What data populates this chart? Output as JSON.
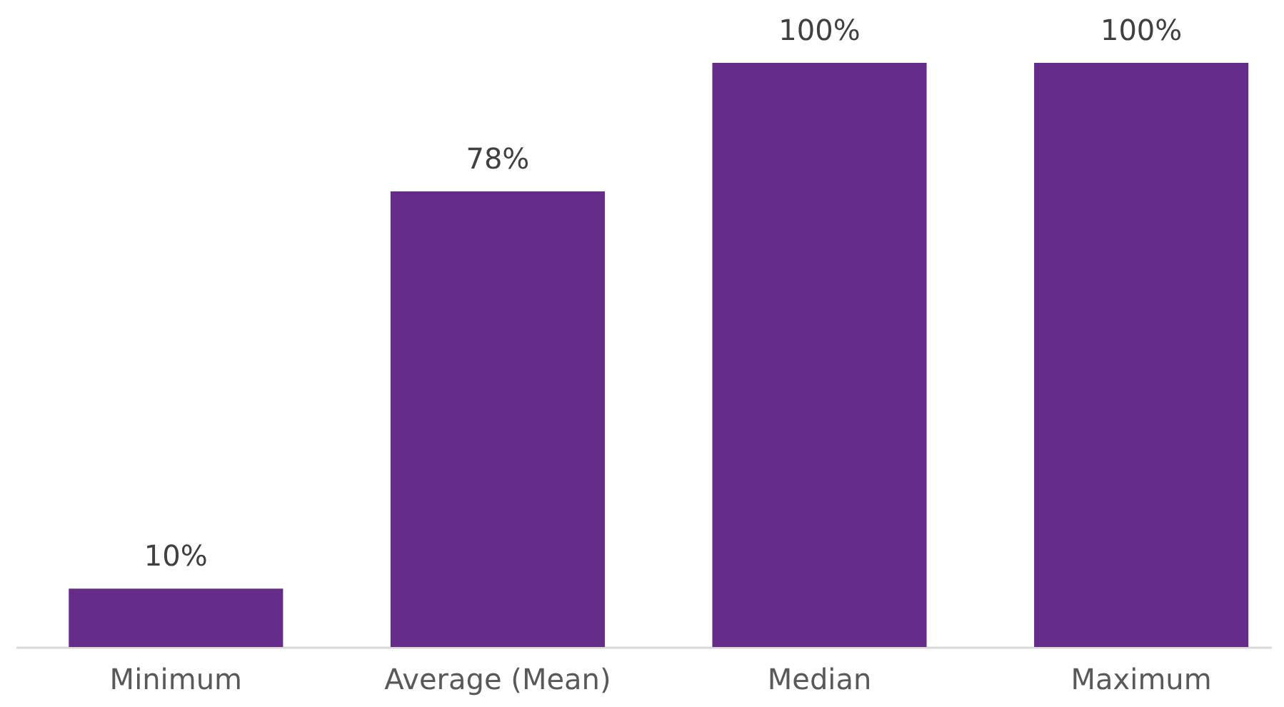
{
  "chart_data": {
    "type": "bar",
    "categories": [
      "Minimum",
      "Average (Mean)",
      "Median",
      "Maximum"
    ],
    "values": [
      10,
      78,
      100,
      100
    ],
    "color": "#652d89",
    "value_labels": [
      "10%",
      "78%",
      "100%",
      "100%"
    ],
    "ylim": [
      0,
      100
    ],
    "tick_labels": "x"
  }
}
